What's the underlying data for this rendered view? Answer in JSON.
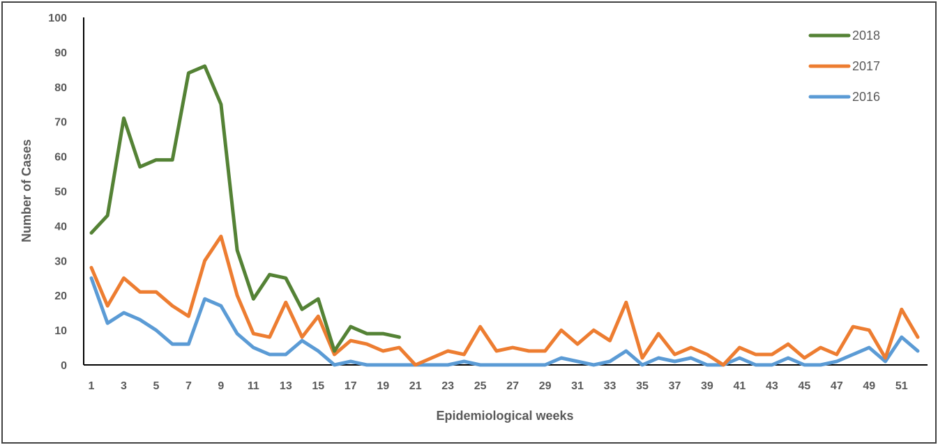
{
  "chart_data": {
    "type": "line",
    "title": "",
    "xlabel": "Epidemiological weeks",
    "ylabel": "Number of Cases",
    "ylim": [
      0,
      100
    ],
    "yticks": [
      "0",
      "10",
      "20",
      "30",
      "40",
      "50",
      "60",
      "70",
      "80",
      "90",
      "100"
    ],
    "xticks": [
      "1",
      "3",
      "5",
      "7",
      "9",
      "11",
      "13",
      "15",
      "17",
      "19",
      "21",
      "23",
      "25",
      "27",
      "29",
      "31",
      "33",
      "35",
      "37",
      "39",
      "41",
      "43",
      "45",
      "47",
      "49",
      "51"
    ],
    "grid": false,
    "legend_position": "top-right",
    "series": [
      {
        "name": "2018",
        "color": "#548235",
        "x": [
          1,
          2,
          3,
          4,
          5,
          6,
          7,
          8,
          9,
          10,
          11,
          12,
          13,
          14,
          15,
          16,
          17,
          18,
          19,
          20
        ],
        "values": [
          38,
          43,
          71,
          57,
          59,
          59,
          84,
          86,
          75,
          33,
          19,
          26,
          25,
          16,
          19,
          4,
          11,
          9,
          9,
          8
        ]
      },
      {
        "name": "2017",
        "color": "#ED7D31",
        "x": [
          1,
          2,
          3,
          4,
          5,
          6,
          7,
          8,
          9,
          10,
          11,
          12,
          13,
          14,
          15,
          16,
          17,
          18,
          19,
          20,
          21,
          22,
          23,
          24,
          25,
          26,
          27,
          28,
          29,
          30,
          31,
          32,
          33,
          34,
          35,
          36,
          37,
          38,
          39,
          40,
          41,
          42,
          43,
          44,
          45,
          46,
          47,
          48,
          49,
          50,
          51,
          52
        ],
        "values": [
          28,
          17,
          25,
          21,
          21,
          17,
          14,
          30,
          37,
          20,
          9,
          8,
          18,
          8,
          14,
          3,
          7,
          6,
          4,
          5,
          0,
          2,
          4,
          3,
          11,
          4,
          5,
          4,
          4,
          10,
          6,
          10,
          7,
          18,
          2,
          9,
          3,
          5,
          3,
          0,
          5,
          3,
          3,
          6,
          2,
          5,
          3,
          11,
          10,
          2,
          16,
          8
        ]
      },
      {
        "name": "2016",
        "color": "#5B9BD5",
        "x": [
          1,
          2,
          3,
          4,
          5,
          6,
          7,
          8,
          9,
          10,
          11,
          12,
          13,
          14,
          15,
          16,
          17,
          18,
          19,
          20,
          21,
          22,
          23,
          24,
          25,
          26,
          27,
          28,
          29,
          30,
          31,
          32,
          33,
          34,
          35,
          36,
          37,
          38,
          39,
          40,
          41,
          42,
          43,
          44,
          45,
          46,
          47,
          48,
          49,
          50,
          51,
          52
        ],
        "values": [
          25,
          12,
          15,
          13,
          10,
          6,
          6,
          19,
          17,
          9,
          5,
          3,
          3,
          7,
          4,
          0,
          1,
          0,
          0,
          0,
          0,
          0,
          0,
          1,
          0,
          0,
          0,
          0,
          0,
          2,
          1,
          0,
          1,
          4,
          0,
          2,
          1,
          2,
          0,
          0,
          2,
          0,
          0,
          2,
          0,
          0,
          1,
          3,
          5,
          1,
          8,
          4
        ]
      }
    ]
  }
}
